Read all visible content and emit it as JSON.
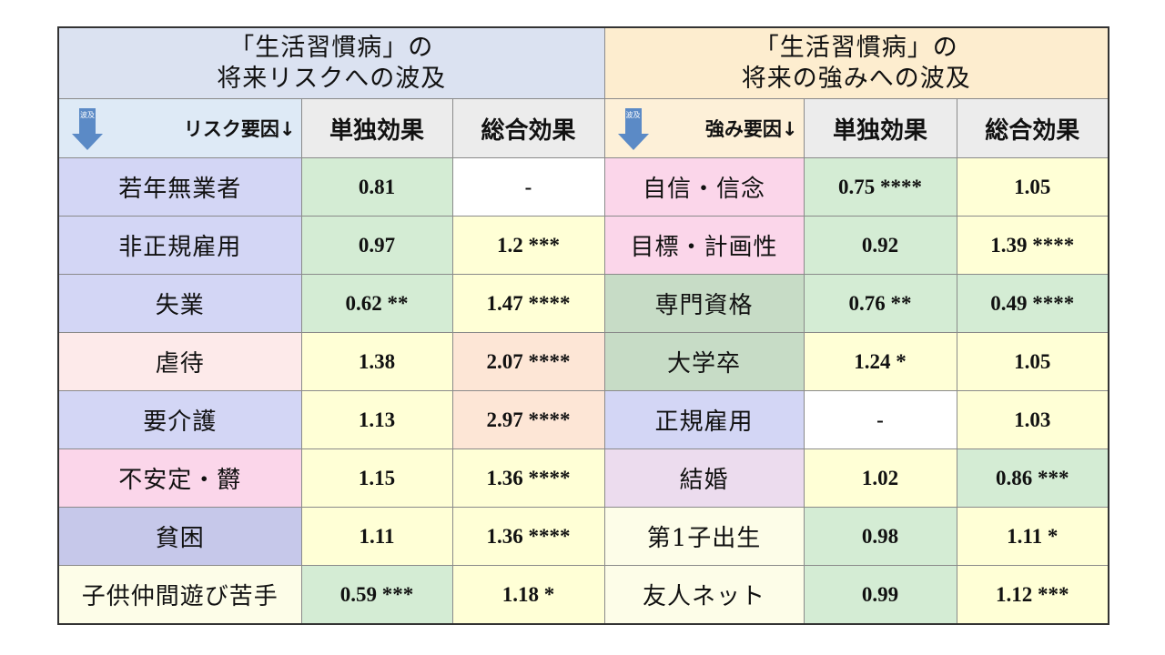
{
  "header": {
    "left_title_line1": "「生活習慣病」の",
    "left_title_line2": "将来リスクへの波及",
    "right_title_line1": "「生活習慣病」の",
    "right_title_line2": "将来の強みへの波及"
  },
  "columns": {
    "risk_factor": "リスク要因↓",
    "strength_factor": "強み要因↓",
    "single_effect": "単独効果",
    "total_effect": "総合効果",
    "arrow_label": "波及"
  },
  "rows": [
    {
      "risk": "若年無業者",
      "risk_bg": "#d3d6f5",
      "rs": "0.81",
      "rs_bg": "#d4ecd4",
      "rt": "-",
      "rt_bg": "#ffffff",
      "str": "自信・信念",
      "str_bg": "#fbd6ea",
      "ss": "0.75 ****",
      "ss_bg": "#d4ecd4",
      "st": "1.05",
      "st_bg": "#ffffd6"
    },
    {
      "risk": "非正規雇用",
      "risk_bg": "#d3d6f5",
      "rs": "0.97",
      "rs_bg": "#d4ecd4",
      "rt": "1.2 ***",
      "rt_bg": "#ffffd6",
      "str": "目標・計画性",
      "str_bg": "#fbd6ea",
      "ss": "0.92",
      "ss_bg": "#d4ecd4",
      "st": "1.39 ****",
      "st_bg": "#ffffd6"
    },
    {
      "risk": "失業",
      "risk_bg": "#d3d6f5",
      "rs": "0.62 **",
      "rs_bg": "#d4ecd4",
      "rt": "1.47 ****",
      "rt_bg": "#ffffd6",
      "str": "専門資格",
      "str_bg": "#c7dcc6",
      "ss": "0.76 **",
      "ss_bg": "#d4ecd4",
      "st": "0.49 ****",
      "st_bg": "#d4ecd4"
    },
    {
      "risk": "虐待",
      "risk_bg": "#fdeaea",
      "rs": "1.38",
      "rs_bg": "#ffffd6",
      "rt": "2.07 ****",
      "rt_bg": "#fde6d6",
      "str": "大学卒",
      "str_bg": "#c7dcc6",
      "ss": "1.24 *",
      "ss_bg": "#ffffd6",
      "st": "1.05",
      "st_bg": "#ffffd6"
    },
    {
      "risk": "要介護",
      "risk_bg": "#d3d6f5",
      "rs": "1.13",
      "rs_bg": "#ffffd6",
      "rt": "2.97 ****",
      "rt_bg": "#fde6d6",
      "str": "正規雇用",
      "str_bg": "#d3d6f5",
      "ss": "-",
      "ss_bg": "#ffffff",
      "st": "1.03",
      "st_bg": "#ffffd6"
    },
    {
      "risk": "不安定・欝",
      "risk_bg": "#fbd6ea",
      "rs": "1.15",
      "rs_bg": "#ffffd6",
      "rt": "1.36 ****",
      "rt_bg": "#ffffd6",
      "str": "結婚",
      "str_bg": "#ecdcee",
      "ss": "1.02",
      "ss_bg": "#ffffd6",
      "st": "0.86 ***",
      "st_bg": "#d4ecd4"
    },
    {
      "risk": "貧困",
      "risk_bg": "#c6c8ea",
      "rs": "1.11",
      "rs_bg": "#ffffd6",
      "rt": "1.36 ****",
      "rt_bg": "#ffffd6",
      "str": "第1子出生",
      "str_bg": "#fdfde8",
      "ss": "0.98",
      "ss_bg": "#d4ecd4",
      "st": "1.11 *",
      "st_bg": "#ffffd6"
    },
    {
      "risk": "子供仲間遊び苦手",
      "risk_bg": "#fdfde8",
      "rs": "0.59 ***",
      "rs_bg": "#d4ecd4",
      "rt": "1.18 *",
      "rt_bg": "#ffffd6",
      "str": "友人ネット",
      "str_bg": "#fdfde8",
      "ss": "0.99",
      "ss_bg": "#d4ecd4",
      "st": "1.12 ***",
      "st_bg": "#ffffd6"
    }
  ]
}
